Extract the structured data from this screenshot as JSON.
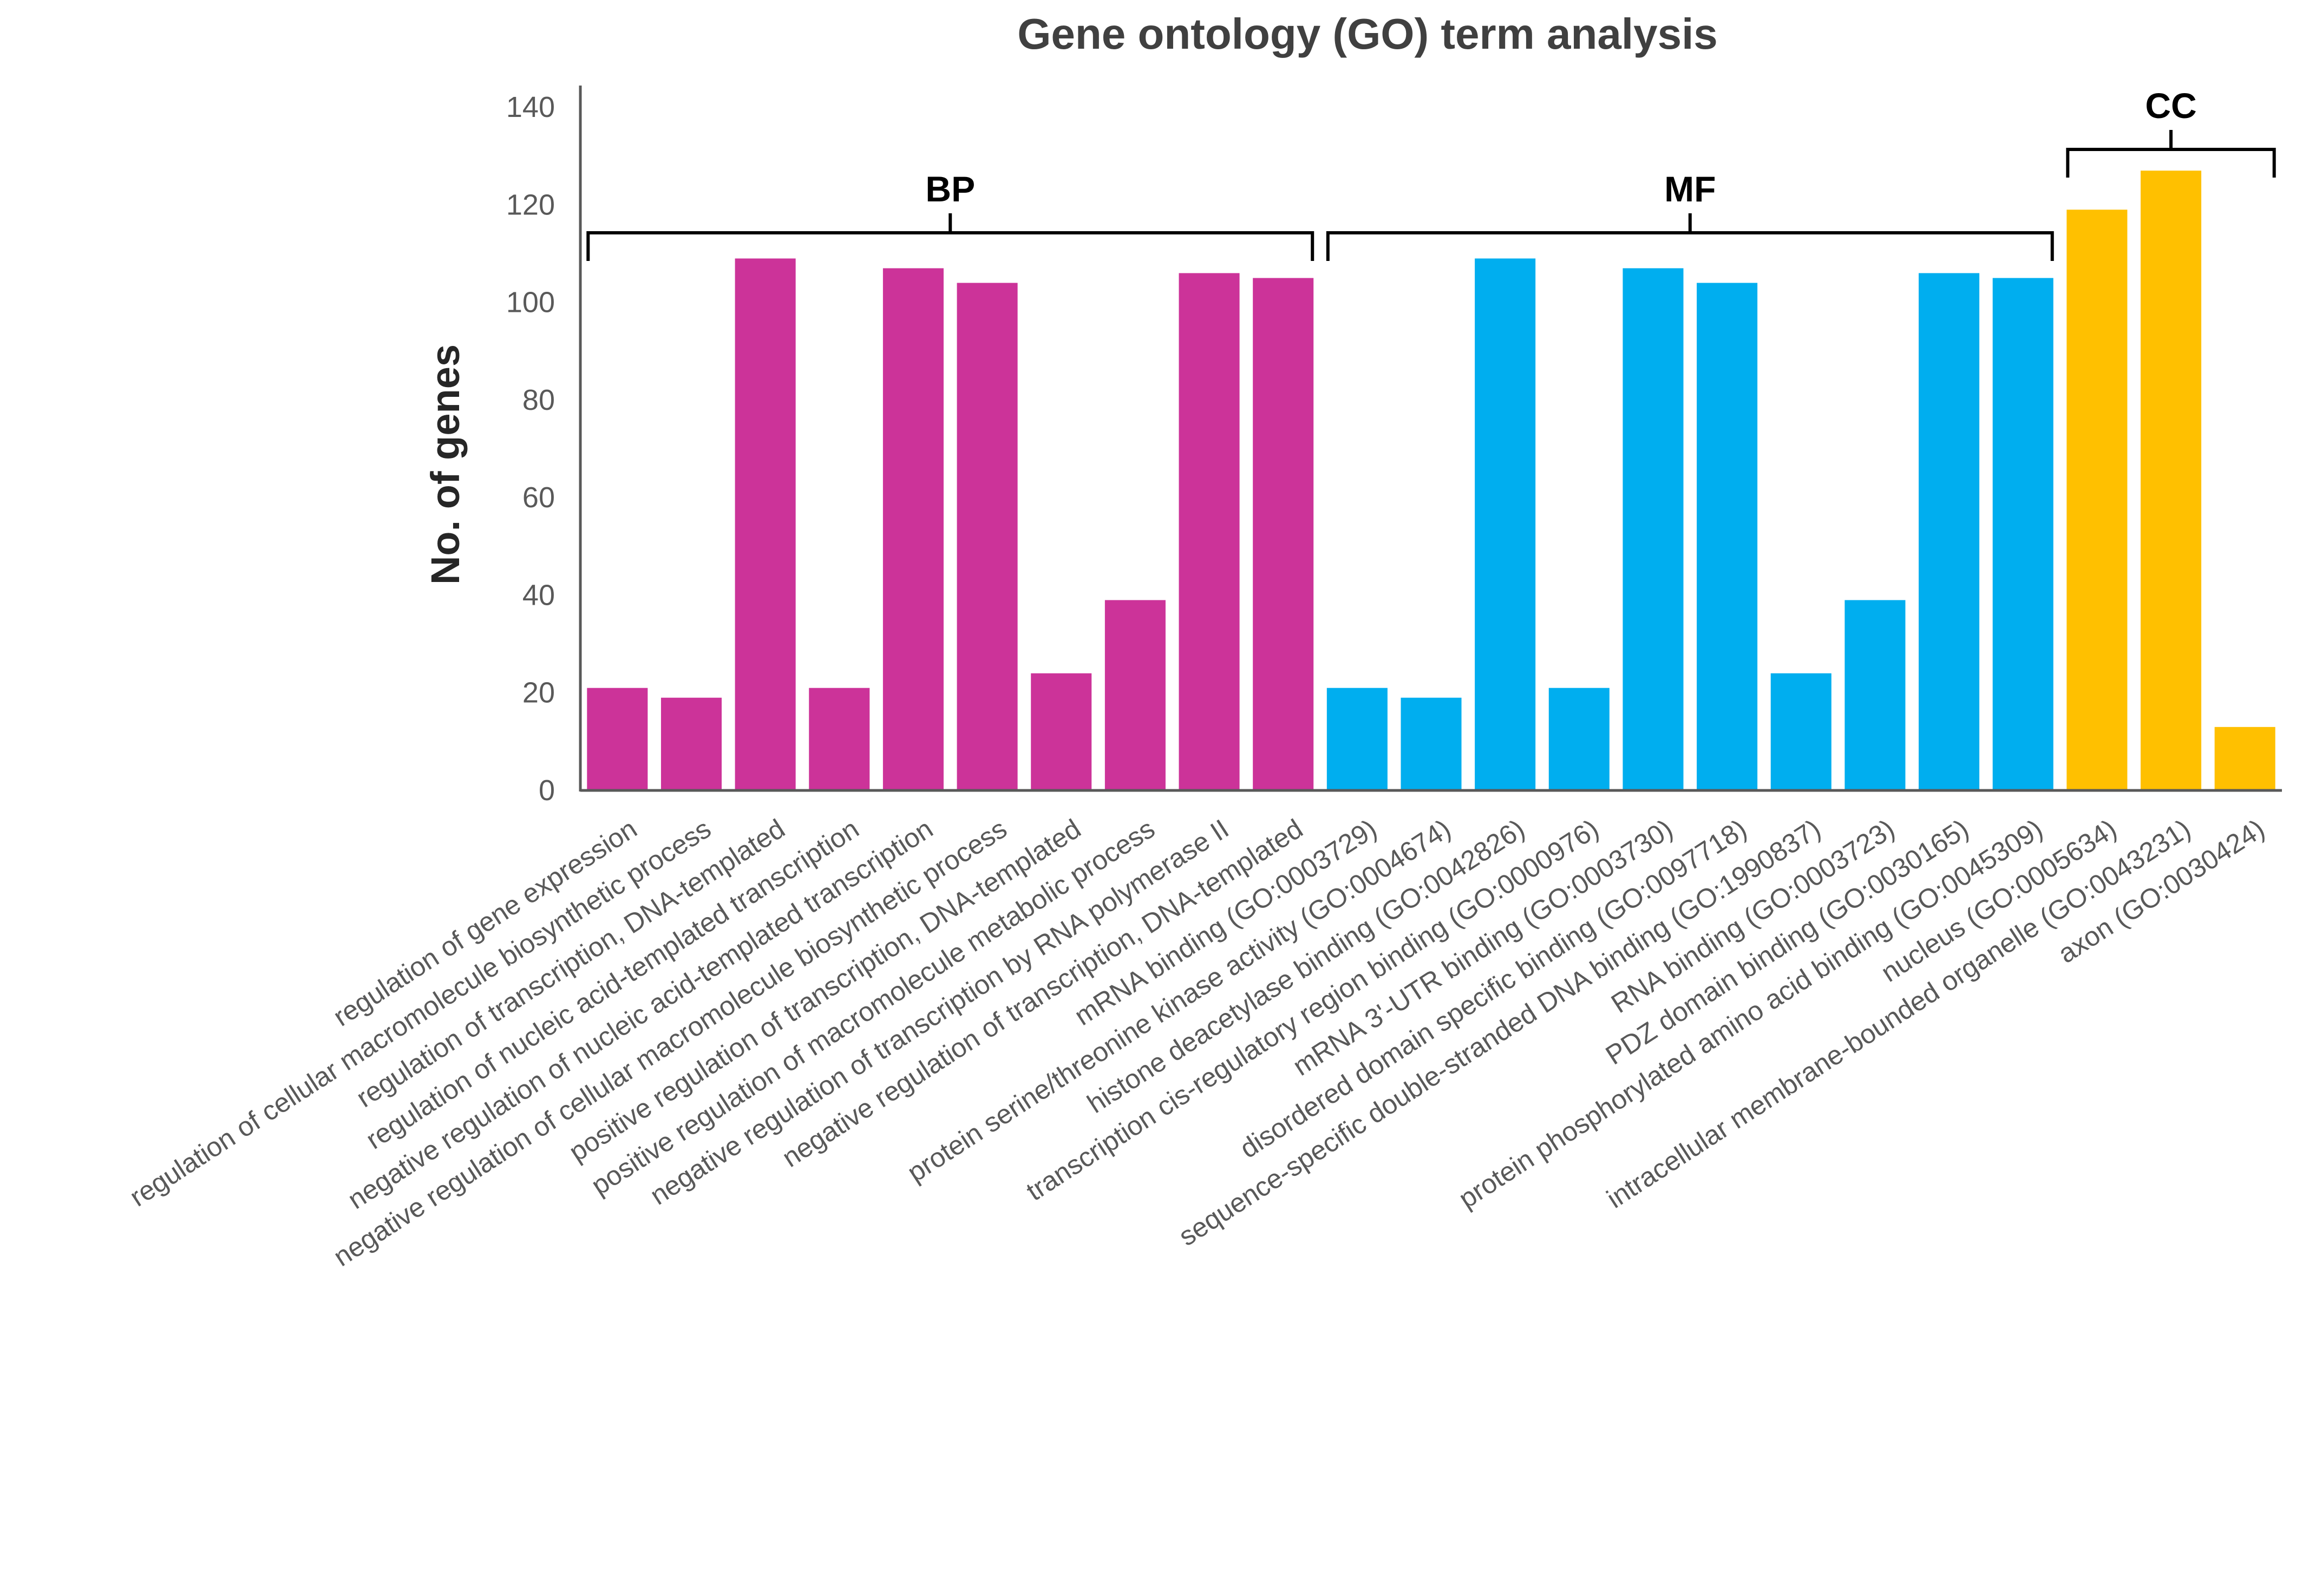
{
  "chart_data": {
    "type": "bar",
    "title": "Gene ontology (GO) term analysis",
    "xlabel": "",
    "ylabel": "No. of genes",
    "ylim": [
      0,
      140
    ],
    "yticks": [
      0,
      20,
      40,
      60,
      80,
      100,
      120,
      140
    ],
    "grid": false,
    "colors": {
      "BP": "#cc3399",
      "MF": "#00aeef",
      "CC": "#ffc000"
    },
    "categories": [
      "regulation of gene expression",
      "regulation of cellular macromolecule biosynthetic process",
      "regulation of transcription, DNA-templated",
      "regulation of nucleic acid-templated transcription",
      "negative regulation of nucleic acid-templated transcription",
      "negative regulation of cellular macromolecule biosynthetic process",
      "positive regulation of transcription, DNA-templated",
      "positive regulation of macromolecule metabolic process",
      "negative regulation of transcription by RNA polymerase II",
      "negative regulation of transcription, DNA-templated",
      "mRNA binding (GO:0003729)",
      "protein serine/threonine kinase activity (GO:0004674)",
      "histone deacetylase binding (GO:0042826)",
      "transcription cis-regulatory region binding (GO:0000976)",
      "mRNA 3'-UTR binding (GO:0003730)",
      "disordered domain specific binding (GO:0097718)",
      "sequence-specific double-stranded DNA binding (GO:1990837)",
      "RNA binding (GO:0003723)",
      "PDZ domain binding (GO:0030165)",
      "protein phosphorylated amino acid binding (GO:0045309)",
      "nucleus (GO:0005634)",
      "intracellular membrane-bounded organelle (GO:0043231)",
      "axon (GO:0030424)"
    ],
    "values": [
      21,
      19,
      109,
      21,
      107,
      104,
      24,
      39,
      106,
      105,
      21,
      19,
      109,
      21,
      107,
      104,
      24,
      39,
      106,
      105,
      119,
      127,
      13
    ],
    "groups": [
      {
        "name": "BP",
        "start": 0,
        "end": 9
      },
      {
        "name": "MF",
        "start": 10,
        "end": 19
      },
      {
        "name": "CC",
        "start": 20,
        "end": 22
      }
    ]
  }
}
